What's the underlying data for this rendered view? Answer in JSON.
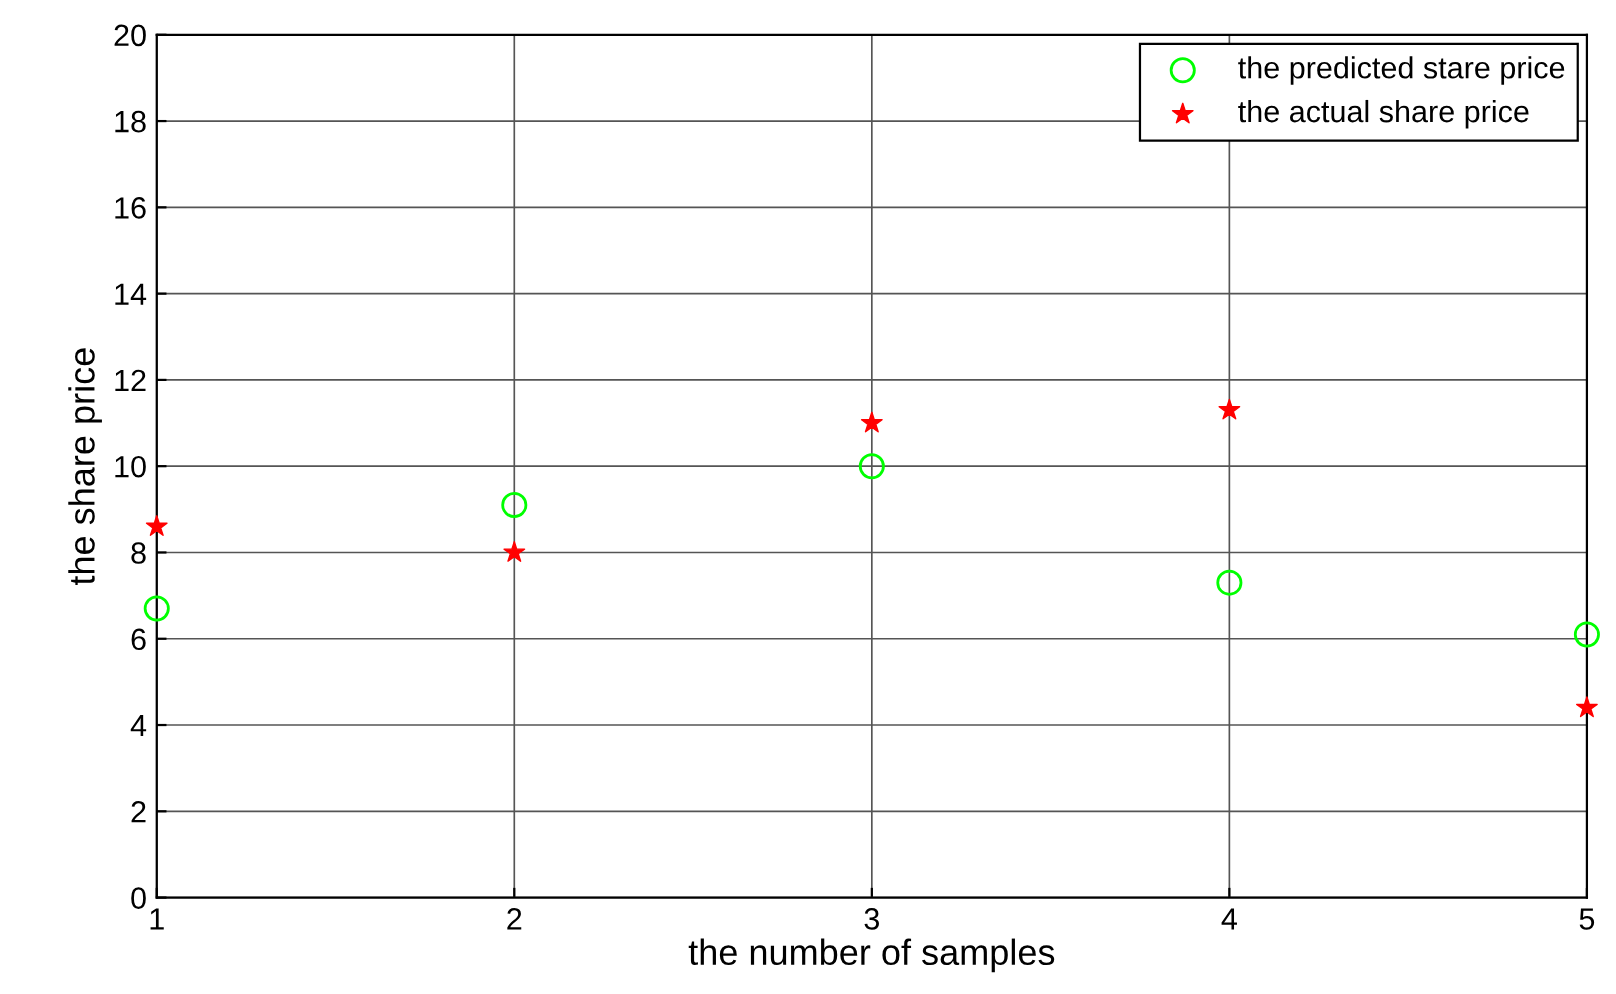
{
  "chart_data": {
    "type": "scatter",
    "xlabel": "the number of samples",
    "ylabel": "the share price",
    "x": [
      1,
      2,
      3,
      4,
      5
    ],
    "series": [
      {
        "name": "the predicted stare price",
        "color": "#00ff00",
        "marker": "circle",
        "values": [
          6.7,
          9.1,
          10.0,
          7.3,
          6.1
        ]
      },
      {
        "name": "the actual share price",
        "color": "#ff0000",
        "marker": "star",
        "values": [
          8.6,
          8.0,
          11.0,
          11.3,
          4.4
        ]
      }
    ],
    "xlim": [
      1,
      5
    ],
    "xticks": [
      1,
      2,
      3,
      4,
      5
    ],
    "ylim": [
      0,
      20
    ],
    "yticks": [
      0,
      2,
      4,
      6,
      8,
      10,
      12,
      14,
      16,
      18,
      20
    ],
    "grid": true,
    "legend": "top right"
  }
}
